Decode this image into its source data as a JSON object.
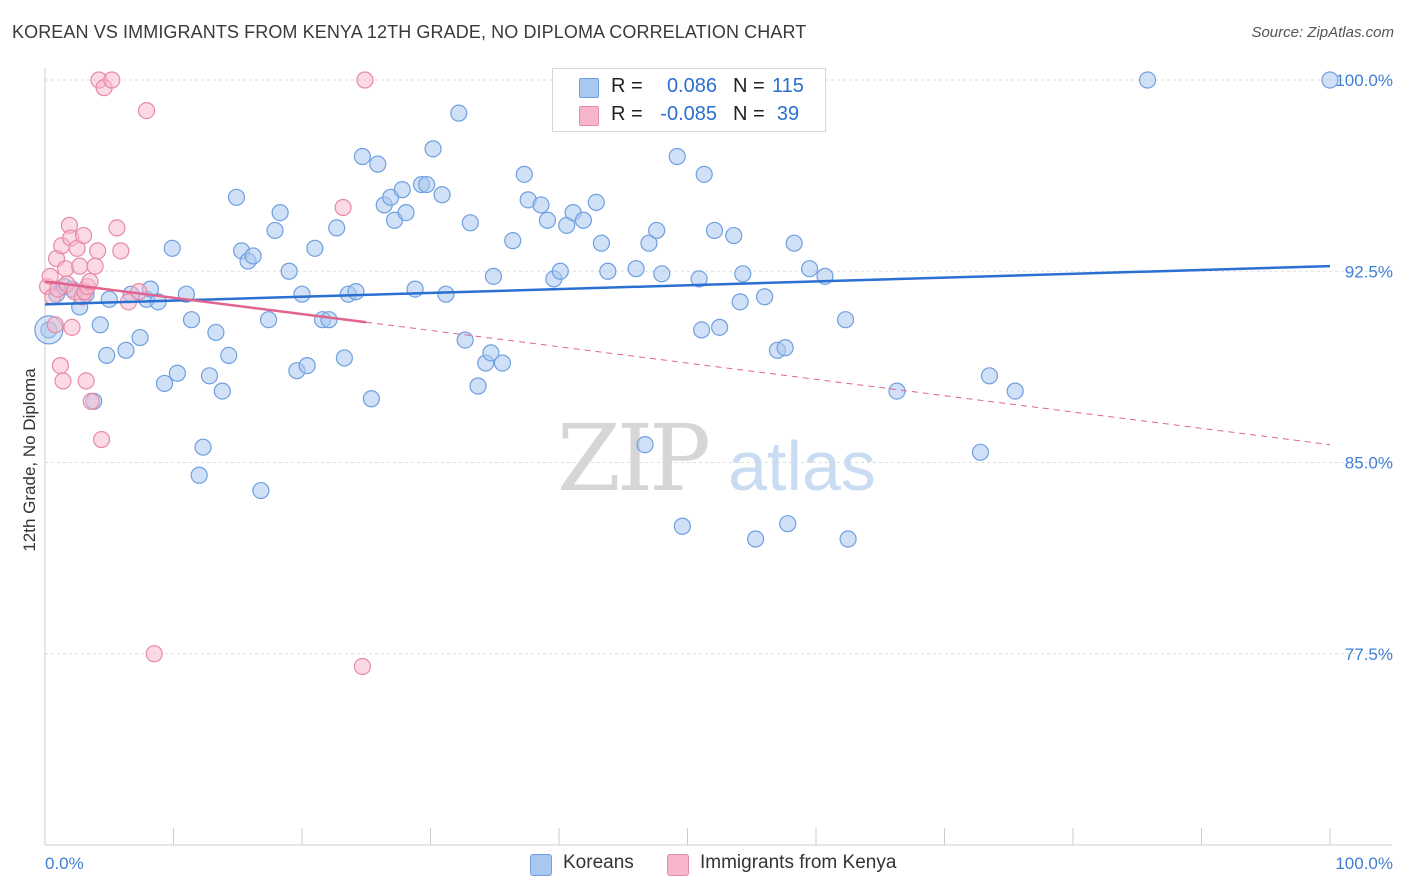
{
  "title": "KOREAN VS IMMIGRANTS FROM KENYA 12TH GRADE, NO DIPLOMA CORRELATION CHART",
  "source": "Source: ZipAtlas.com",
  "watermark": {
    "zip": "ZIP",
    "atlas": "atlas"
  },
  "legend_top": {
    "rows": [
      {
        "r_label": "R =",
        "r_value": "0.086",
        "n_label": "N =",
        "n_value": "115"
      },
      {
        "r_label": "R =",
        "r_value": "-0.085",
        "n_label": "N =",
        "n_value": "39"
      }
    ]
  },
  "legend_bottom": {
    "koreans": "Koreans",
    "kenya": "Immigrants from Kenya"
  },
  "colors": {
    "koreans_fill": "#a9c8f0",
    "koreans_stroke": "#6f9fe0",
    "koreans_line": "#2a6fd1",
    "kenya_fill": "#f7b6c9",
    "kenya_stroke": "#e889a7",
    "kenya_line": "#e0648f",
    "tick_label": "#3f7fd6",
    "grid": "#dddddd"
  },
  "chart_data": {
    "type": "scatter",
    "title": "KOREAN VS IMMIGRANTS FROM KENYA 12TH GRADE, NO DIPLOMA CORRELATION CHART",
    "xlabel": "",
    "ylabel": "12th Grade, No Diploma",
    "xlim": [
      0,
      100
    ],
    "ylim": [
      70,
      100.5
    ],
    "x_tick_labels": [
      "0.0%",
      "100.0%"
    ],
    "y_ticks": [
      77.5,
      85.0,
      92.5,
      100.0
    ],
    "y_tick_labels": [
      "77.5%",
      "85.0%",
      "92.5%",
      "100.0%"
    ],
    "grid": true,
    "legend_position": "bottom",
    "series": [
      {
        "name": "Koreans",
        "points": [
          [
            0.3,
            90.2
          ],
          [
            0.9,
            91.6
          ],
          [
            1.5,
            91.9
          ],
          [
            2.1,
            91.8
          ],
          [
            2.7,
            91.1
          ],
          [
            3.2,
            91.6
          ],
          [
            3.8,
            87.4
          ],
          [
            4.3,
            90.4
          ],
          [
            4.8,
            89.2
          ],
          [
            5.0,
            91.4
          ],
          [
            6.3,
            89.4
          ],
          [
            6.7,
            91.6
          ],
          [
            7.4,
            89.9
          ],
          [
            7.9,
            91.4
          ],
          [
            8.2,
            91.8
          ],
          [
            8.8,
            91.3
          ],
          [
            9.3,
            88.1
          ],
          [
            9.9,
            93.4
          ],
          [
            10.3,
            88.5
          ],
          [
            11.0,
            91.6
          ],
          [
            11.4,
            90.6
          ],
          [
            12.0,
            84.5
          ],
          [
            12.3,
            85.6
          ],
          [
            12.8,
            88.4
          ],
          [
            13.3,
            90.1
          ],
          [
            13.8,
            87.8
          ],
          [
            14.3,
            89.2
          ],
          [
            14.9,
            95.4
          ],
          [
            15.3,
            93.3
          ],
          [
            15.8,
            92.9
          ],
          [
            16.2,
            93.1
          ],
          [
            16.8,
            83.9
          ],
          [
            17.4,
            90.6
          ],
          [
            17.9,
            94.1
          ],
          [
            18.3,
            94.8
          ],
          [
            19.0,
            92.5
          ],
          [
            19.6,
            88.6
          ],
          [
            20.0,
            91.6
          ],
          [
            20.4,
            88.8
          ],
          [
            21.0,
            93.4
          ],
          [
            21.6,
            90.6
          ],
          [
            22.1,
            90.6
          ],
          [
            22.7,
            94.2
          ],
          [
            23.3,
            89.1
          ],
          [
            23.6,
            91.6
          ],
          [
            24.2,
            91.7
          ],
          [
            24.7,
            97.0
          ],
          [
            25.4,
            87.5
          ],
          [
            25.9,
            96.7
          ],
          [
            26.4,
            95.1
          ],
          [
            26.9,
            95.4
          ],
          [
            27.2,
            94.5
          ],
          [
            27.8,
            95.7
          ],
          [
            28.1,
            94.8
          ],
          [
            28.8,
            91.8
          ],
          [
            29.3,
            95.9
          ],
          [
            29.7,
            95.9
          ],
          [
            30.2,
            97.3
          ],
          [
            30.9,
            95.5
          ],
          [
            31.2,
            91.6
          ],
          [
            32.2,
            98.7
          ],
          [
            32.7,
            89.8
          ],
          [
            33.1,
            94.4
          ],
          [
            33.7,
            88.0
          ],
          [
            34.3,
            88.9
          ],
          [
            34.7,
            89.3
          ],
          [
            35.6,
            88.9
          ],
          [
            34.9,
            92.3
          ],
          [
            36.4,
            93.7
          ],
          [
            37.3,
            96.3
          ],
          [
            37.6,
            95.3
          ],
          [
            38.6,
            95.1
          ],
          [
            39.1,
            94.5
          ],
          [
            39.6,
            92.2
          ],
          [
            40.1,
            92.5
          ],
          [
            40.6,
            94.3
          ],
          [
            41.1,
            94.8
          ],
          [
            41.7,
            100.0
          ],
          [
            41.9,
            94.5
          ],
          [
            42.9,
            95.2
          ],
          [
            43.3,
            93.6
          ],
          [
            43.8,
            92.5
          ],
          [
            46.0,
            92.6
          ],
          [
            46.7,
            85.7
          ],
          [
            47.0,
            93.6
          ],
          [
            47.6,
            94.1
          ],
          [
            48.0,
            92.4
          ],
          [
            49.2,
            97.0
          ],
          [
            49.6,
            82.5
          ],
          [
            50.9,
            92.2
          ],
          [
            51.3,
            96.3
          ],
          [
            51.1,
            90.2
          ],
          [
            52.1,
            94.1
          ],
          [
            52.5,
            90.3
          ],
          [
            53.6,
            93.9
          ],
          [
            54.3,
            92.4
          ],
          [
            54.1,
            91.3
          ],
          [
            55.3,
            82.0
          ],
          [
            56.0,
            91.5
          ],
          [
            57.0,
            89.4
          ],
          [
            57.6,
            89.5
          ],
          [
            57.8,
            82.6
          ],
          [
            58.3,
            93.6
          ],
          [
            59.5,
            92.6
          ],
          [
            60.7,
            92.3
          ],
          [
            62.5,
            82.0
          ],
          [
            62.3,
            90.6
          ],
          [
            66.3,
            87.8
          ],
          [
            72.8,
            85.4
          ],
          [
            73.5,
            88.4
          ],
          [
            75.5,
            87.8
          ],
          [
            85.8,
            100.0
          ],
          [
            100.0,
            100.0
          ]
        ]
      },
      {
        "name": "Immigrants from Kenya",
        "points": [
          [
            0.2,
            91.9
          ],
          [
            0.4,
            92.3
          ],
          [
            0.6,
            91.5
          ],
          [
            0.8,
            90.4
          ],
          [
            0.9,
            93.0
          ],
          [
            1.0,
            91.8
          ],
          [
            1.2,
            88.8
          ],
          [
            1.3,
            93.5
          ],
          [
            1.4,
            88.2
          ],
          [
            1.6,
            92.6
          ],
          [
            1.7,
            92.0
          ],
          [
            1.9,
            94.3
          ],
          [
            2.0,
            93.8
          ],
          [
            2.1,
            90.3
          ],
          [
            2.3,
            91.7
          ],
          [
            2.5,
            93.4
          ],
          [
            2.7,
            92.7
          ],
          [
            2.9,
            91.5
          ],
          [
            3.0,
            93.9
          ],
          [
            3.1,
            91.7
          ],
          [
            3.2,
            88.2
          ],
          [
            3.3,
            91.9
          ],
          [
            3.5,
            92.1
          ],
          [
            3.6,
            87.4
          ],
          [
            3.9,
            92.7
          ],
          [
            4.1,
            93.3
          ],
          [
            4.4,
            85.9
          ],
          [
            4.2,
            100.0
          ],
          [
            4.6,
            99.7
          ],
          [
            5.2,
            100.0
          ],
          [
            5.6,
            94.2
          ],
          [
            5.9,
            93.3
          ],
          [
            6.5,
            91.3
          ],
          [
            7.3,
            91.7
          ],
          [
            7.9,
            98.8
          ],
          [
            8.5,
            77.5
          ],
          [
            23.2,
            95.0
          ],
          [
            24.9,
            100.0
          ],
          [
            24.7,
            77.0
          ]
        ]
      }
    ],
    "trend_lines": [
      {
        "series": "Koreans",
        "x": [
          0,
          100
        ],
        "y": [
          91.2,
          92.7
        ],
        "style": "solid"
      },
      {
        "series": "Immigrants from Kenya",
        "x": [
          0,
          25
        ],
        "y": [
          92.1,
          90.5
        ],
        "style": "solid"
      },
      {
        "series": "Immigrants from Kenya",
        "x": [
          25,
          100
        ],
        "y": [
          90.5,
          85.7
        ],
        "style": "dashed"
      }
    ]
  }
}
